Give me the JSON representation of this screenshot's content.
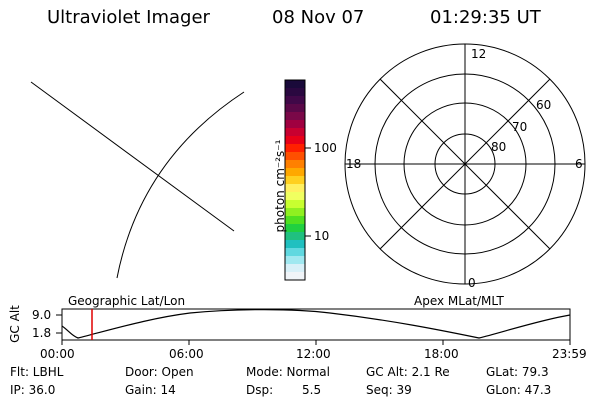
{
  "header": {
    "title": "Ultraviolet Imager",
    "date": "08 Nov 07",
    "time": "01:29:35 UT"
  },
  "colorbar": {
    "unit_label": "photon cm⁻²s⁻¹",
    "tick_labels": [
      "100",
      "10"
    ],
    "colors": [
      "#1a0a3a",
      "#2a0840",
      "#400848",
      "#5a0848",
      "#7a0848",
      "#a00040",
      "#c80030",
      "#e80018",
      "#ff2000",
      "#ff5000",
      "#ff8000",
      "#ffa800",
      "#ffd020",
      "#fff060",
      "#f0ff60",
      "#c8ff30",
      "#90f020",
      "#50e020",
      "#20d040",
      "#20c080",
      "#20c0c0",
      "#60d8e0",
      "#a0e8f0",
      "#d8f0f8",
      "#f0f4f8"
    ]
  },
  "polar_plot": {
    "labels_top": "12",
    "labels_bottom": "0",
    "labels_left": "18",
    "labels_right": "6",
    "ring_labels": [
      "60",
      "70",
      "80"
    ]
  },
  "timeline": {
    "yaxis_label": "GC Alt",
    "ytick_labels": [
      "9.0",
      "1.8"
    ],
    "left_caption": "Geographic Lat/Lon",
    "right_caption": "Apex MLat/MLT",
    "xtick_labels": [
      "00:00",
      "06:00",
      "12:00",
      "18:00",
      "23:59"
    ],
    "marker_color": "#e00000"
  },
  "info": {
    "flt": "Flt: LBHL",
    "door": "Door: Open",
    "mode": "Mode: Normal",
    "gcalt": "GC Alt: 2.1 Re",
    "glat": "GLat: 79.3",
    "ip": "IP: 36.0",
    "gain": "Gain: 14",
    "dsp": "Dsp:",
    "dsp_value": "5.5",
    "seq": "Seq: 39",
    "glon": "GLon: 47.3"
  }
}
